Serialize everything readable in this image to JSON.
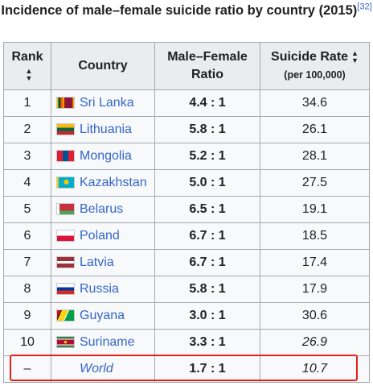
{
  "table": {
    "caption": "Incidence of male–female suicide ratio by country (2015)",
    "caption_ref": "[32]",
    "headers": {
      "rank": "Rank",
      "country": "Country",
      "ratio_line1": "Male–Female",
      "ratio_line2": "Ratio",
      "rate_line1": "Suicide Rate",
      "rate_line2": "(per 100,000)"
    },
    "rows": [
      {
        "rank": "1",
        "country": "Sri Lanka",
        "flag": "sri-lanka-flag-icon",
        "ratio": "4.4 : 1",
        "rate": "34.6"
      },
      {
        "rank": "2",
        "country": "Lithuania",
        "flag": "lithuania-flag-icon",
        "ratio": "5.8 : 1",
        "rate": "26.1"
      },
      {
        "rank": "3",
        "country": "Mongolia",
        "flag": "mongolia-flag-icon",
        "ratio": "5.2 : 1",
        "rate": "28.1"
      },
      {
        "rank": "4",
        "country": "Kazakhstan",
        "flag": "kazakhstan-flag-icon",
        "ratio": "5.0 : 1",
        "rate": "27.5"
      },
      {
        "rank": "5",
        "country": "Belarus",
        "flag": "belarus-flag-icon",
        "ratio": "6.5 : 1",
        "rate": "19.1"
      },
      {
        "rank": "6",
        "country": "Poland",
        "flag": "poland-flag-icon",
        "ratio": "6.7 : 1",
        "rate": "18.5"
      },
      {
        "rank": "7",
        "country": "Latvia",
        "flag": "latvia-flag-icon",
        "ratio": "6.7 : 1",
        "rate": "17.4"
      },
      {
        "rank": "8",
        "country": "Russia",
        "flag": "russia-flag-icon",
        "ratio": "5.8 : 1",
        "rate": "17.9"
      },
      {
        "rank": "9",
        "country": "Guyana",
        "flag": "guyana-flag-icon",
        "ratio": "3.0 : 1",
        "rate": "30.6"
      },
      {
        "rank": "10",
        "country": "Suriname",
        "flag": "suriname-flag-icon",
        "ratio": "3.3 : 1",
        "rate": "26.9"
      },
      {
        "rank": "–",
        "country": "World",
        "flag": "",
        "ratio": "1.7 : 1",
        "rate": "10.7"
      }
    ]
  },
  "colors": {
    "link": "#3366cc",
    "header_bg": "#eaecf0",
    "cell_bg": "#f8f9fa",
    "border": "#a2a9b1",
    "highlight": "#e0201b"
  }
}
